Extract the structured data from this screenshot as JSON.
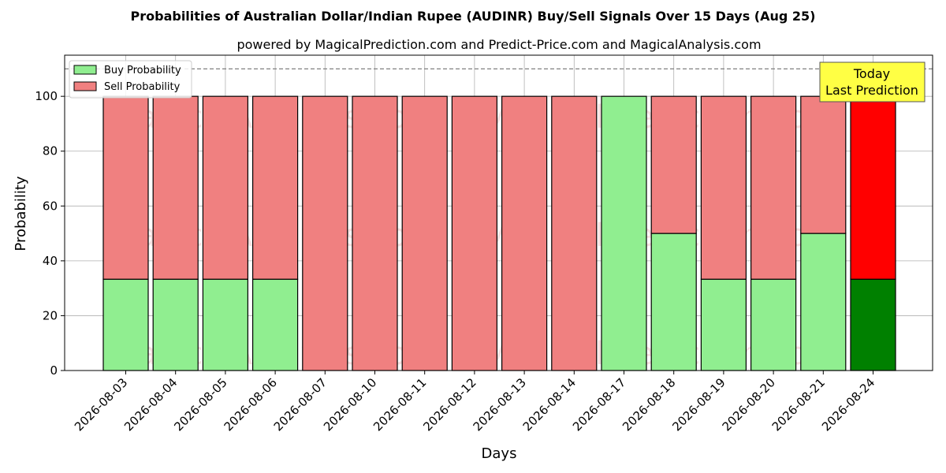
{
  "chart_data": {
    "type": "bar",
    "stacked": true,
    "title": "Probabilities of Australian Dollar/Indian Rupee (AUDINR) Buy/Sell Signals Over 15 Days (Aug 25)",
    "subtitle": "powered by MagicalPrediction.com and Predict-Price.com and MagicalAnalysis.com",
    "xlabel": "Days",
    "ylabel": "Probability",
    "ylim": [
      0,
      115
    ],
    "yticks": [
      0,
      20,
      40,
      60,
      80,
      100
    ],
    "reference_line": 110,
    "grid": true,
    "legend_position": "top-left",
    "categories": [
      "2026-08-03",
      "2026-08-04",
      "2026-08-05",
      "2026-08-06",
      "2026-08-07",
      "2026-08-10",
      "2026-08-11",
      "2026-08-12",
      "2026-08-13",
      "2026-08-14",
      "2026-08-17",
      "2026-08-18",
      "2026-08-19",
      "2026-08-20",
      "2026-08-21",
      "2026-08-24"
    ],
    "series": [
      {
        "name": "Buy Probability",
        "color": "#90ee90",
        "highlight_color": "#008000",
        "values": [
          33.3,
          33.3,
          33.3,
          33.3,
          0,
          0,
          0,
          0,
          0,
          0,
          100,
          50,
          33.3,
          33.3,
          50,
          33.3
        ]
      },
      {
        "name": "Sell Probability",
        "color": "#f08080",
        "highlight_color": "#ff0000",
        "values": [
          66.7,
          66.7,
          66.7,
          66.7,
          100,
          100,
          100,
          100,
          100,
          100,
          0,
          50,
          66.7,
          66.7,
          50,
          66.7
        ]
      }
    ],
    "highlight_index": 15,
    "annotation": {
      "lines": [
        "Today",
        "Last Prediction"
      ],
      "background": "#ffff44"
    },
    "watermarks": [
      "MagicalAnalysis.com",
      "MagicalPrediction.com"
    ]
  }
}
